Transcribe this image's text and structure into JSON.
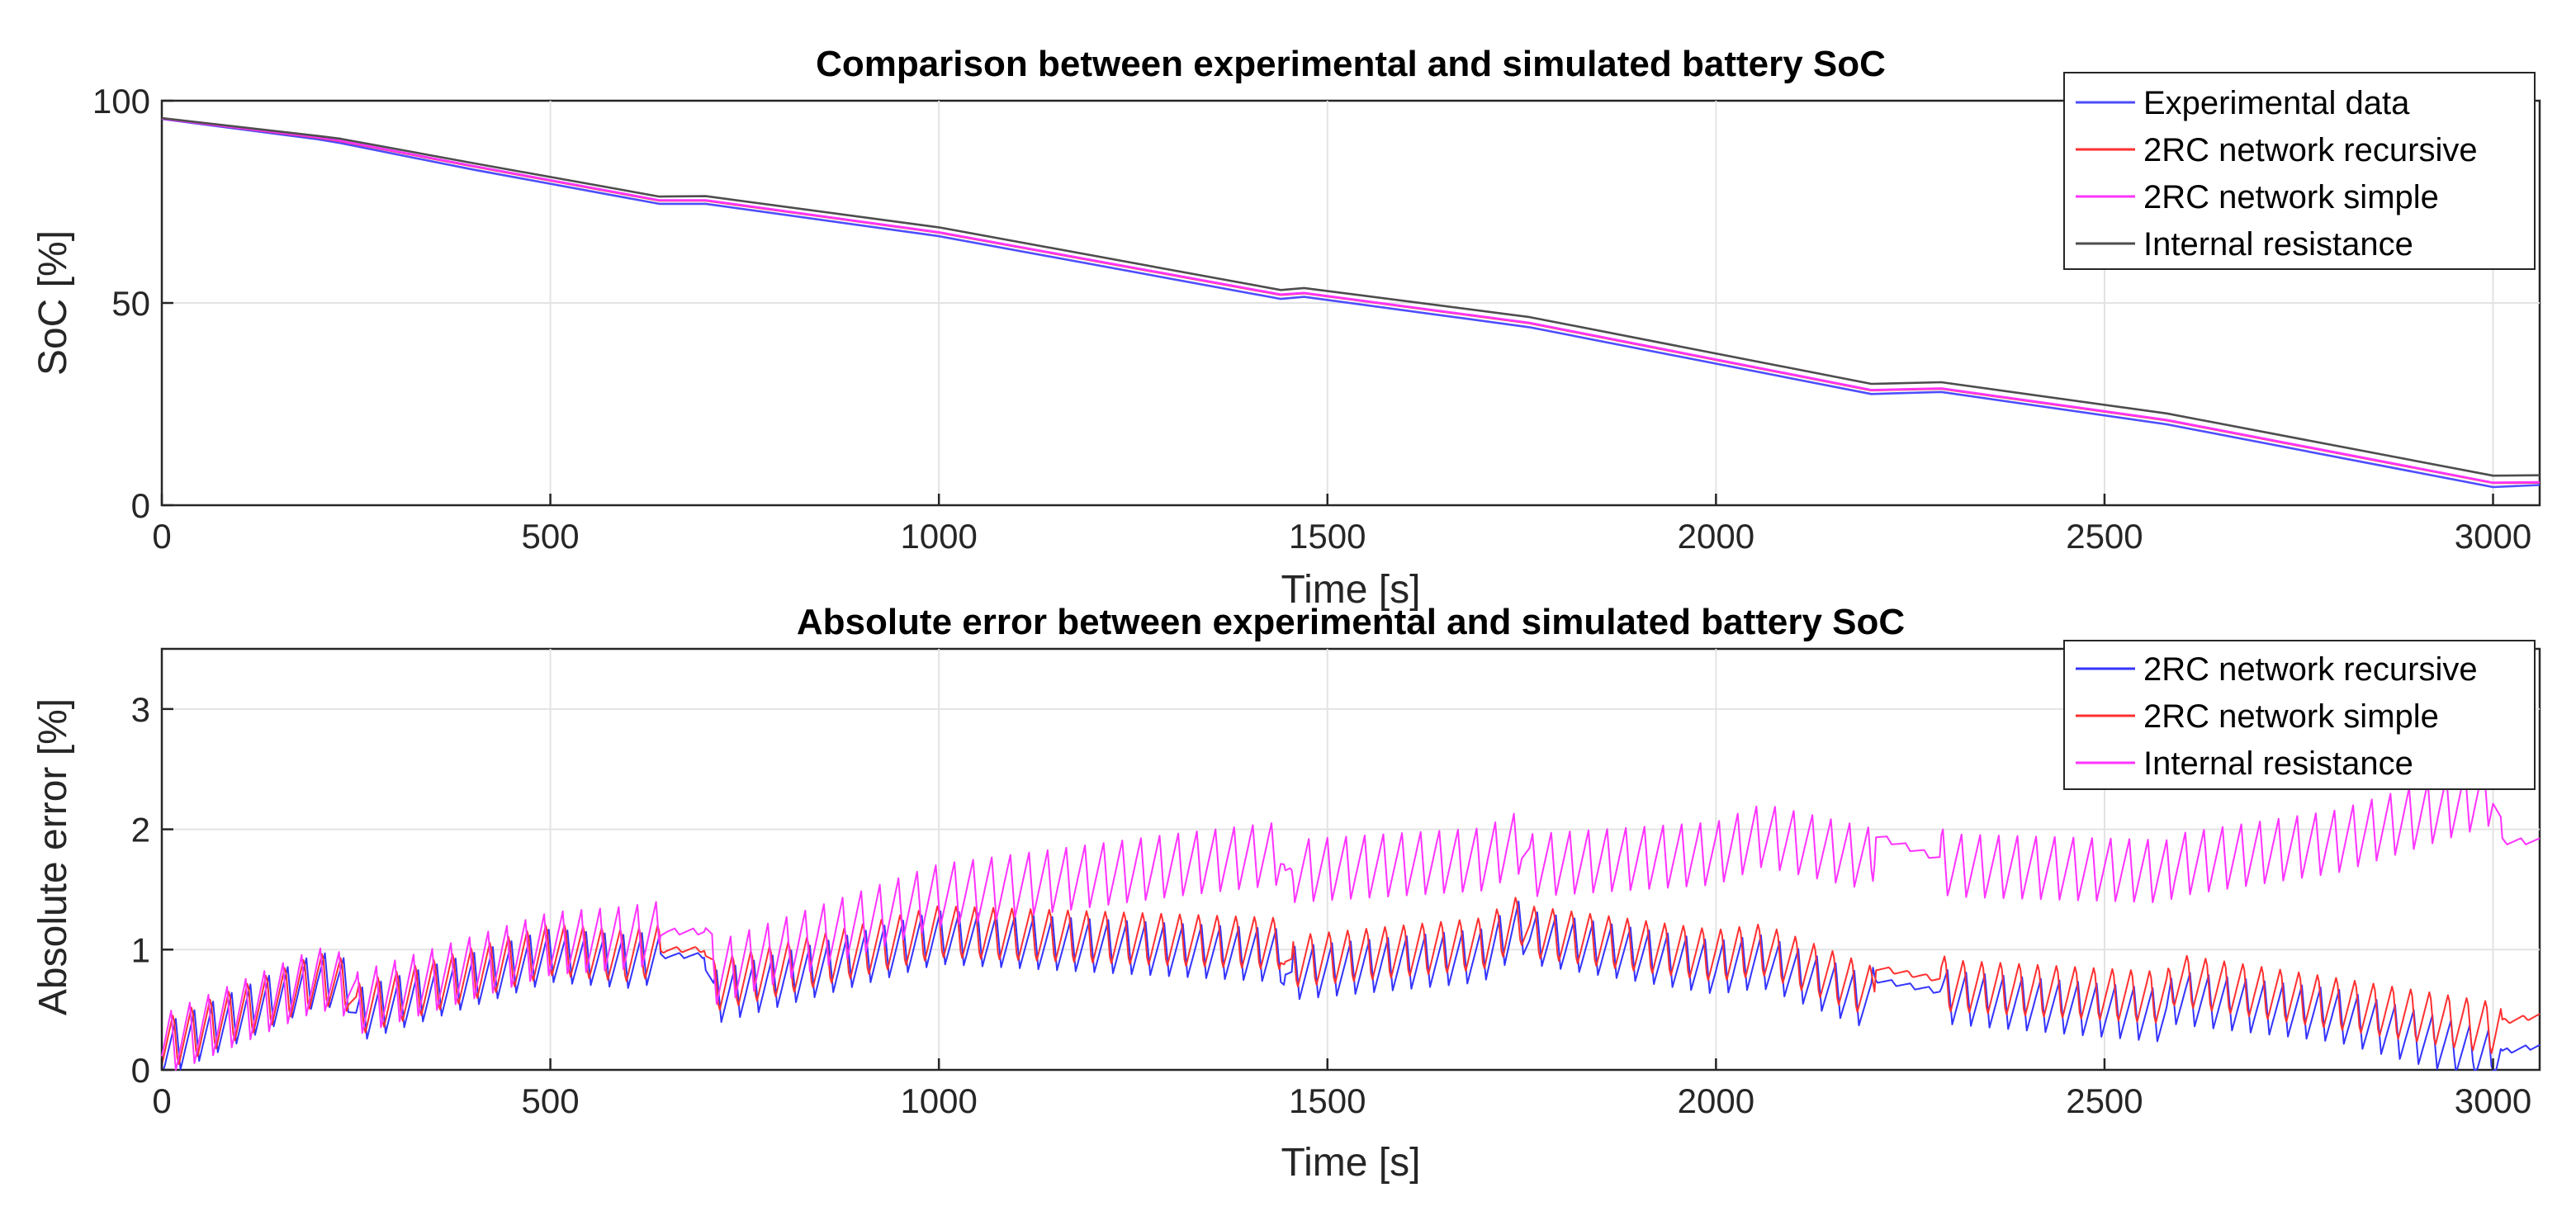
{
  "chart_data": [
    {
      "type": "line",
      "title": "Comparison between experimental and simulated battery SoC",
      "xlabel": "Time [s]",
      "ylabel": "SoC [%]",
      "xlim": [
        0,
        3060
      ],
      "ylim": [
        0,
        100
      ],
      "xticks": [
        0,
        500,
        1000,
        1500,
        2000,
        2500,
        3000
      ],
      "xtick_labels": [
        "0",
        "500",
        "1000",
        "1500",
        "2000",
        "2500",
        "3000"
      ],
      "yticks": [
        0,
        50,
        100
      ],
      "ytick_labels": [
        "0",
        "50",
        "100"
      ],
      "grid": true,
      "legend_position": "top-right",
      "series": [
        {
          "name": "Experimental data",
          "color": "#4d4dff",
          "x": [
            0,
            200,
            230,
            400,
            640,
            700,
            1000,
            1440,
            1470,
            1760,
            2200,
            2290,
            2580,
            3000,
            3060
          ],
          "y": [
            95.5,
            90.5,
            89.5,
            83,
            74.5,
            74.5,
            66.5,
            51,
            51.5,
            44,
            27.5,
            28,
            20,
            4.5,
            5
          ]
        },
        {
          "name": "2RC network recursive",
          "color": "#ff3030",
          "x": [
            0,
            200,
            230,
            400,
            640,
            700,
            1000,
            1440,
            1470,
            1760,
            2200,
            2290,
            2580,
            3000,
            3060
          ],
          "y": [
            95.6,
            90.9,
            90,
            83.8,
            75.3,
            75.3,
            67.4,
            52,
            52.4,
            45,
            28.4,
            28.8,
            21,
            5.5,
            5.6
          ]
        },
        {
          "name": "2RC network simple",
          "color": "#ff33ff",
          "x": [
            0,
            200,
            230,
            400,
            640,
            700,
            1000,
            1440,
            1470,
            1760,
            2200,
            2290,
            2580,
            3000,
            3060
          ],
          "y": [
            95.6,
            91,
            90.1,
            83.9,
            75.4,
            75.4,
            67.5,
            52.1,
            52.5,
            45.1,
            28.5,
            28.9,
            21.1,
            5.6,
            5.7
          ]
        },
        {
          "name": "Internal resistance",
          "color": "#4d4d4d",
          "x": [
            0,
            200,
            230,
            400,
            640,
            700,
            1000,
            1440,
            1470,
            1760,
            2200,
            2290,
            2580,
            3000,
            3060
          ],
          "y": [
            95.7,
            91.3,
            90.6,
            84.6,
            76.3,
            76.4,
            68.7,
            53.2,
            53.7,
            46.5,
            30,
            30.4,
            22.7,
            7.3,
            7.4
          ]
        }
      ]
    },
    {
      "type": "line",
      "title": "Absolute error between experimental and simulated battery SoC",
      "xlabel": "Time [s]",
      "ylabel": "Absolute error [%]",
      "xlim": [
        0,
        3060
      ],
      "ylim": [
        0,
        3.5
      ],
      "xticks": [
        0,
        500,
        1000,
        1500,
        2000,
        2500,
        3000
      ],
      "xtick_labels": [
        "0",
        "500",
        "1000",
        "1500",
        "2000",
        "2500",
        "3000"
      ],
      "yticks": [
        0,
        1,
        2,
        3
      ],
      "ytick_labels": [
        "0",
        "1",
        "2",
        "3"
      ],
      "grid": true,
      "legend_position": "top-right",
      "series": [
        {
          "name": "2RC network recursive",
          "color": "#3333ff",
          "x": [
            0,
            200,
            210,
            240,
            250,
            500,
            600,
            650,
            700,
            710,
            1000,
            1440,
            1445,
            1450,
            1700,
            1750,
            1760,
            2000,
            2060,
            2200,
            2205,
            2290,
            2300,
            2580,
            2590,
            2800,
            3000,
            3010,
            3060
          ],
          "y": [
            0.15,
            0.75,
            0.75,
            0.7,
            0.45,
            0.95,
            0.9,
            0.95,
            0.95,
            0.6,
            1.1,
            0.95,
            0.8,
            0.8,
            0.95,
            1.2,
            1.1,
            0.85,
            0.9,
            0.55,
            0.75,
            0.65,
            0.6,
            0.45,
            0.6,
            0.45,
            0.1,
            0.15,
            0.2
          ]
        },
        {
          "name": "2RC network simple",
          "color": "#ff3030",
          "x": [
            0,
            200,
            210,
            240,
            250,
            500,
            600,
            650,
            700,
            710,
            1000,
            1440,
            1445,
            1450,
            1700,
            1750,
            1760,
            2000,
            2060,
            2200,
            2205,
            2290,
            2300,
            2580,
            2590,
            2800,
            3000,
            3010,
            3060
          ],
          "y": [
            0.2,
            0.75,
            0.75,
            0.7,
            0.5,
            1.0,
            0.95,
            1.0,
            1.0,
            0.7,
            1.15,
            1.05,
            0.9,
            0.9,
            1.05,
            1.25,
            1.15,
            0.95,
            1.0,
            0.65,
            0.85,
            0.75,
            0.7,
            0.6,
            0.75,
            0.55,
            0.35,
            0.4,
            0.45
          ]
        },
        {
          "name": "Internal resistance",
          "color": "#ff33ff",
          "x": [
            0,
            200,
            210,
            240,
            250,
            500,
            600,
            650,
            700,
            710,
            1000,
            1300,
            1440,
            1445,
            1450,
            1700,
            1750,
            1760,
            2000,
            2060,
            2200,
            2205,
            2290,
            2300,
            2580,
            2590,
            2800,
            3000,
            3010,
            3060
          ],
          "y": [
            0.2,
            0.75,
            0.75,
            0.7,
            0.55,
            1.05,
            1.1,
            1.15,
            1.15,
            0.8,
            1.45,
            1.7,
            1.8,
            1.65,
            1.65,
            1.75,
            1.9,
            1.7,
            1.8,
            1.95,
            1.75,
            1.95,
            1.75,
            1.7,
            1.65,
            1.7,
            1.9,
            2.3,
            1.9,
            1.9
          ]
        }
      ]
    }
  ]
}
